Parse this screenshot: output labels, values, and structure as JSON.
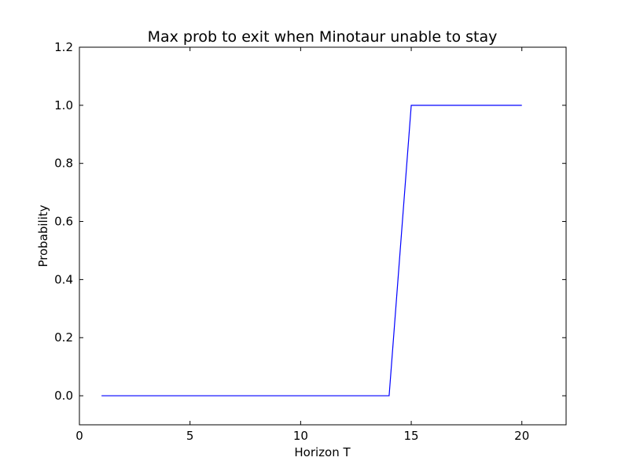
{
  "chart_data": {
    "type": "line",
    "title": "Max prob to exit when Minotaur unable to stay",
    "xlabel": "Horizon T",
    "ylabel": "Probability",
    "xlim": [
      0,
      22
    ],
    "ylim": [
      -0.1,
      1.2
    ],
    "xticks": [
      0,
      5,
      10,
      15,
      20
    ],
    "yticks": [
      0.0,
      0.2,
      0.4,
      0.6,
      0.8,
      1.0,
      1.2
    ],
    "xtick_labels": [
      "0",
      "5",
      "10",
      "15",
      "20"
    ],
    "ytick_labels": [
      "0.0",
      "0.2",
      "0.4",
      "0.6",
      "0.8",
      "1.0",
      "1.2"
    ],
    "grid": false,
    "series": [
      {
        "color": "#0000ff",
        "x": [
          1,
          2,
          3,
          4,
          5,
          6,
          7,
          8,
          9,
          10,
          11,
          12,
          13,
          14,
          15,
          16,
          17,
          18,
          19,
          20
        ],
        "y": [
          0,
          0,
          0,
          0,
          0,
          0,
          0,
          0,
          0,
          0,
          0,
          0,
          0,
          0,
          1,
          1,
          1,
          1,
          1,
          1
        ]
      }
    ]
  }
}
